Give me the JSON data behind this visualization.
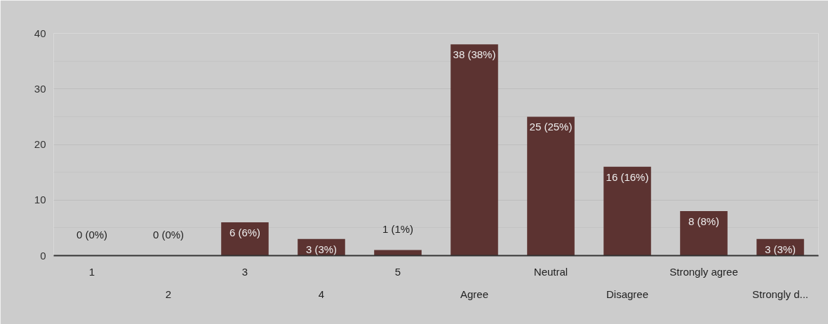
{
  "chart_data": {
    "type": "bar",
    "categories": [
      "1",
      "2",
      "3",
      "4",
      "5",
      "Agree",
      "Neutral",
      "Disagree",
      "Strongly agree",
      "Strongly d..."
    ],
    "values": [
      0,
      0,
      6,
      3,
      1,
      38,
      25,
      16,
      8,
      3
    ],
    "value_labels": [
      "0 (0%)",
      "0 (0%)",
      "6 (6%)",
      "3 (3%)",
      "1 (1%)",
      "38 (38%)",
      "25 (25%)",
      "16 (16%)",
      "8 (8%)",
      "3 (3%)"
    ],
    "color": "#5c3331",
    "ylim": [
      0,
      40
    ],
    "yticks": [
      0,
      10,
      20,
      30,
      40
    ],
    "grid": "y"
  }
}
